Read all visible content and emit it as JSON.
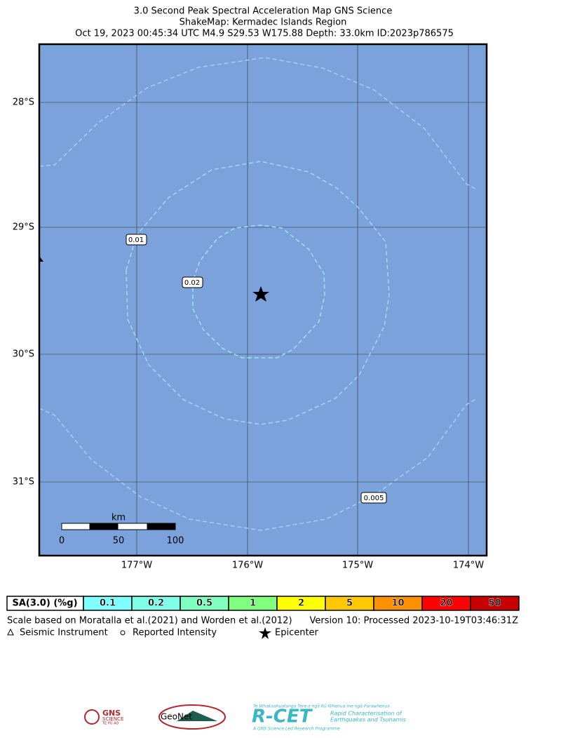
{
  "header": {
    "title": "3.0 Second Peak Spectral Acceleration Map GNS Science",
    "subtitle": "ShakeMap: Kermadec Islands Region",
    "event": "Oct 19, 2023 00:45:34 UTC M4.9 S29.53 W175.88 Depth: 33.0km ID:2023p786575"
  },
  "map": {
    "lat_labels": [
      "28°S",
      "29°S",
      "30°S",
      "31°S"
    ],
    "lon_labels": [
      "177°W",
      "176°W",
      "175°W",
      "174°W"
    ],
    "contour_labels": [
      "0.01",
      "0.02",
      "0.005"
    ],
    "scale_bar": {
      "unit": "km",
      "ticks": [
        "0",
        "50",
        "100"
      ]
    }
  },
  "legend": {
    "title": "SA(3.0) (%g)",
    "bins": [
      {
        "label": "0.1",
        "color": "#80ffff"
      },
      {
        "label": "0.2",
        "color": "#80ffe6"
      },
      {
        "label": "0.5",
        "color": "#80ffc0"
      },
      {
        "label": "1",
        "color": "#80ff80"
      },
      {
        "label": "2",
        "color": "#ffff00"
      },
      {
        "label": "5",
        "color": "#ffc800"
      },
      {
        "label": "10",
        "color": "#ff9100"
      },
      {
        "label": "20",
        "color": "#ff0000"
      },
      {
        "label": "50",
        "color": "#c80000"
      }
    ]
  },
  "notes": {
    "scale_basis": "Scale based on Moratalla et al.(2021) and Worden et al.(2012)",
    "version": "Version 10: Processed 2023-10-19T03:46:31Z",
    "instrument": "Seismic Instrument",
    "intensity": "Reported Intensity",
    "epicenter": "Epicenter"
  },
  "logos": {
    "gns": "GNS",
    "gns_sub": "SCIENCE",
    "gns_maori": "TE PŪ AO",
    "geonet": "GeoNet",
    "rcet": "R-CET",
    "rcet_maori": "Te Whakaahuatanga Tere o ngā Rū Whenua me ngā Parawhenua",
    "rcet_line1": "Rapid Characterisation of",
    "rcet_line2": "Earthquakes and Tsunamis",
    "rcet_footer": "A GNS Science Led Research Programme"
  }
}
